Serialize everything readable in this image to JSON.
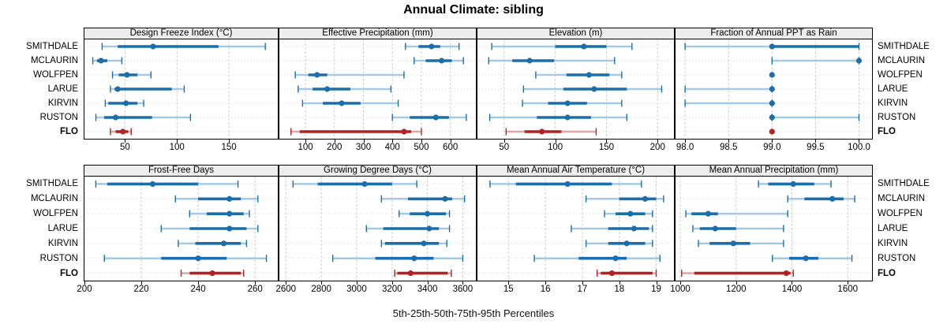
{
  "title": "Annual Climate: sibling",
  "caption": "5th-25th-50th-75th-95th Percentiles",
  "sites": [
    "SMITHDALE",
    "MCLAURIN",
    "WOLFPEN",
    "LARUE",
    "KIRVIN",
    "RUSTON",
    "FLO"
  ],
  "highlight_site": "FLO",
  "colors": {
    "series_blue": "#1B6EAC",
    "series_blue_light": "#A5C9E2",
    "highlight_red": "#B22222",
    "highlight_red_light": "#DBA8A8",
    "gridline": "#CFCFCF",
    "row_guide": "#D5D5D5",
    "strip_bg": "#EDEDED",
    "panel_border": "#000000"
  },
  "chart_data": [
    {
      "type": "interval-dotplot",
      "panel_row": 0,
      "title": "Design Freeze Index (°C)",
      "percentiles": [
        "5th",
        "25th",
        "50th",
        "75th",
        "95th"
      ],
      "ticks": [
        50,
        100,
        150
      ],
      "tick_labels": [
        "50",
        "100",
        "150"
      ],
      "xlim": [
        11,
        197
      ],
      "values": [
        [
          28,
          43,
          77,
          140,
          185
        ],
        [
          19,
          23,
          27,
          33,
          47
        ],
        [
          38,
          44,
          52,
          62,
          75
        ],
        [
          36,
          40,
          43,
          95,
          107
        ],
        [
          31,
          34,
          51,
          62,
          68
        ],
        [
          22,
          30,
          41,
          76,
          113
        ],
        [
          36,
          41,
          48,
          53,
          56
        ]
      ]
    },
    {
      "type": "interval-dotplot",
      "panel_row": 0,
      "title": "Effective Precipitation (mm)",
      "percentiles": [
        "5th",
        "25th",
        "50th",
        "75th",
        "95th"
      ],
      "ticks": [
        100,
        200,
        300,
        400,
        500,
        600
      ],
      "tick_labels": [
        "100",
        "200",
        "300",
        "400",
        "500",
        "600"
      ],
      "xlim": [
        10,
        688
      ],
      "values": [
        [
          445,
          490,
          535,
          565,
          630
        ],
        [
          475,
          515,
          570,
          605,
          645
        ],
        [
          65,
          110,
          140,
          175,
          440
        ],
        [
          75,
          125,
          175,
          255,
          395
        ],
        [
          90,
          160,
          225,
          290,
          420
        ],
        [
          400,
          460,
          550,
          595,
          655
        ],
        [
          50,
          80,
          440,
          465,
          500
        ]
      ]
    },
    {
      "type": "interval-dotplot",
      "panel_row": 0,
      "title": "Elevation (m)",
      "percentiles": [
        "5th",
        "25th",
        "50th",
        "75th",
        "95th"
      ],
      "ticks": [
        50,
        100,
        150,
        200
      ],
      "tick_labels": [
        "50",
        "100",
        "150",
        "200"
      ],
      "xlim": [
        24,
        216
      ],
      "values": [
        [
          38,
          100,
          128,
          150,
          175
        ],
        [
          35,
          58,
          75,
          99,
          158
        ],
        [
          81,
          111,
          133,
          153,
          165
        ],
        [
          69,
          108,
          138,
          170,
          204
        ],
        [
          68,
          93,
          112,
          131,
          165
        ],
        [
          36,
          82,
          112,
          135,
          170
        ],
        [
          52,
          70,
          87,
          106,
          140
        ]
      ]
    },
    {
      "type": "interval-dotplot",
      "panel_row": 0,
      "title": "Fraction of Annual PPT as Rain",
      "percentiles": [
        "5th",
        "25th",
        "50th",
        "75th",
        "95th"
      ],
      "ticks": [
        98,
        98.5,
        99,
        99.5,
        100
      ],
      "tick_labels": [
        "98.0",
        "98.5",
        "99.0",
        "99.5",
        "100.0"
      ],
      "xlim": [
        97.89,
        100.15
      ],
      "values": [
        [
          98,
          99,
          99,
          100,
          100
        ],
        [
          99,
          100,
          100,
          100,
          100
        ],
        [
          99,
          99,
          99,
          99,
          99
        ],
        [
          98,
          99,
          99,
          99,
          99
        ],
        [
          98,
          99,
          99,
          99,
          99
        ],
        [
          99,
          99,
          99,
          99,
          100
        ],
        [
          99,
          99,
          99,
          99,
          99
        ]
      ]
    },
    {
      "type": "interval-dotplot",
      "panel_row": 1,
      "title": "Frost-Free Days",
      "percentiles": [
        "5th",
        "25th",
        "50th",
        "75th",
        "95th"
      ],
      "ticks": [
        200,
        220,
        240,
        260
      ],
      "tick_labels": [
        "200",
        "220",
        "240",
        "260"
      ],
      "xlim": [
        200,
        268
      ],
      "values": [
        [
          204,
          208,
          224,
          240,
          254
        ],
        [
          232,
          240,
          251,
          255,
          261
        ],
        [
          237,
          243,
          251,
          256,
          258
        ],
        [
          227,
          237,
          251,
          257,
          261
        ],
        [
          233,
          239,
          249,
          255,
          257
        ],
        [
          207,
          227,
          240,
          250,
          264
        ],
        [
          234,
          237,
          245,
          255,
          256
        ]
      ]
    },
    {
      "type": "interval-dotplot",
      "panel_row": 1,
      "title": "Growing Degree Days (°C)",
      "percentiles": [
        "5th",
        "25th",
        "50th",
        "75th",
        "95th"
      ],
      "ticks": [
        2600,
        2800,
        3000,
        3200,
        3400,
        3600
      ],
      "tick_labels": [
        "2600",
        "2800",
        "3000",
        "3200",
        "3400",
        "3600"
      ],
      "xlim": [
        2563,
        3674
      ],
      "values": [
        [
          2640,
          2780,
          3045,
          3200,
          3340
        ],
        [
          3140,
          3290,
          3500,
          3540,
          3610
        ],
        [
          3240,
          3300,
          3400,
          3505,
          3525
        ],
        [
          3055,
          3150,
          3410,
          3465,
          3525
        ],
        [
          3140,
          3160,
          3380,
          3465,
          3510
        ],
        [
          2865,
          3105,
          3325,
          3435,
          3600
        ],
        [
          3215,
          3230,
          3305,
          3515,
          3535
        ]
      ]
    },
    {
      "type": "interval-dotplot",
      "panel_row": 1,
      "title": "Mean Annual Air Temperature (°C)",
      "percentiles": [
        "5th",
        "25th",
        "50th",
        "75th",
        "95th"
      ],
      "ticks": [
        15,
        16,
        17,
        18,
        19
      ],
      "tick_labels": [
        "15",
        "16",
        "17",
        "18",
        "19"
      ],
      "xlim": [
        14.16,
        19.48
      ],
      "values": [
        [
          14.5,
          15.2,
          16.6,
          17.8,
          18.6
        ],
        [
          17.1,
          18.0,
          18.7,
          19.0,
          19.2
        ],
        [
          17.6,
          17.9,
          18.3,
          18.7,
          18.9
        ],
        [
          16.7,
          17.7,
          18.4,
          18.8,
          18.9
        ],
        [
          17.1,
          17.7,
          18.2,
          18.7,
          18.9
        ],
        [
          15.7,
          16.9,
          17.9,
          18.2,
          19.1
        ],
        [
          17.4,
          17.5,
          17.8,
          18.9,
          19.0
        ]
      ]
    },
    {
      "type": "interval-dotplot",
      "panel_row": 1,
      "title": "Mean Annual Precipitation (mm)",
      "percentiles": [
        "5th",
        "25th",
        "50th",
        "75th",
        "95th"
      ],
      "ticks": [
        1000,
        1200,
        1400,
        1600
      ],
      "tick_labels": [
        "1000",
        "1200",
        "1400",
        "1600"
      ],
      "xlim": [
        983,
        1687
      ],
      "values": [
        [
          1280,
          1315,
          1405,
          1480,
          1540
        ],
        [
          1385,
          1445,
          1545,
          1585,
          1625
        ],
        [
          1020,
          1040,
          1100,
          1135,
          1385
        ],
        [
          1045,
          1070,
          1125,
          1200,
          1370
        ],
        [
          1065,
          1105,
          1190,
          1250,
          1370
        ],
        [
          1330,
          1390,
          1450,
          1495,
          1615
        ],
        [
          1005,
          1050,
          1380,
          1395,
          1405
        ]
      ]
    }
  ]
}
